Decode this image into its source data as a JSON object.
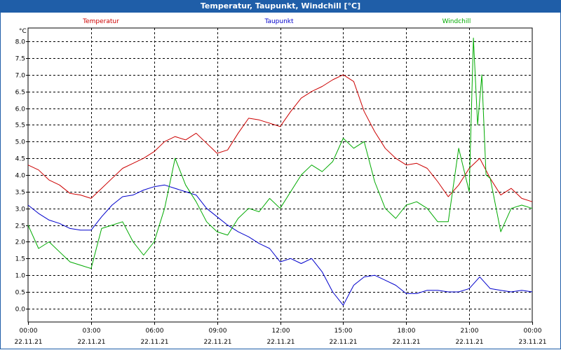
{
  "window": {
    "title": "Temperatur, Taupunkt, Windchill [°C]"
  },
  "chart_data": {
    "type": "line",
    "title": "Temperatur, Taupunkt, Windchill [°C]",
    "ylabel": "°C",
    "ylim": [
      -0.4,
      8.4
    ],
    "yticks": [
      0.0,
      0.5,
      1.0,
      1.5,
      2.0,
      2.5,
      3.0,
      3.5,
      4.0,
      4.5,
      5.0,
      5.5,
      6.0,
      6.5,
      7.0,
      7.5,
      8.0
    ],
    "ytick_labels": [
      "0.0",
      "0.5",
      "1.0",
      "1.5",
      "2.0",
      "2.5",
      "3.0",
      "3.5",
      "4.0",
      "4.5",
      "5.0",
      "5.5",
      "6.0",
      "6.5",
      "7.0",
      "7.5",
      "8.0"
    ],
    "xlim": [
      0,
      24
    ],
    "xticks": [
      0,
      3,
      6,
      9,
      12,
      15,
      18,
      21,
      24
    ],
    "xtick_times": [
      "00:00",
      "03:00",
      "06:00",
      "09:00",
      "12:00",
      "15:00",
      "18:00",
      "21:00",
      "00:00"
    ],
    "xtick_dates": [
      "22.11.21",
      "22.11.21",
      "22.11.21",
      "22.11.21",
      "22.11.21",
      "22.11.21",
      "22.11.21",
      "22.11.21",
      "23.11.21"
    ],
    "grid": true,
    "series": [
      {
        "name": "Temperatur",
        "color": "#cc0000",
        "x": [
          0,
          0.5,
          1,
          1.5,
          2,
          2.5,
          3,
          3.5,
          4,
          4.5,
          5,
          5.5,
          6,
          6.5,
          7,
          7.5,
          8,
          8.5,
          9,
          9.5,
          10,
          10.5,
          11,
          11.5,
          12,
          12.5,
          13,
          13.5,
          14,
          14.5,
          15,
          15.5,
          16,
          16.5,
          17,
          17.5,
          18,
          18.5,
          19,
          19.5,
          20,
          20.5,
          21,
          21.5,
          22,
          22.5,
          23,
          23.5,
          24
        ],
        "values": [
          4.3,
          4.15,
          3.85,
          3.7,
          3.45,
          3.4,
          3.3,
          3.6,
          3.9,
          4.2,
          4.35,
          4.5,
          4.7,
          5.0,
          5.15,
          5.05,
          5.25,
          4.95,
          4.65,
          4.75,
          5.25,
          5.7,
          5.65,
          5.55,
          5.45,
          5.9,
          6.3,
          6.5,
          6.65,
          6.85,
          7.0,
          6.8,
          5.9,
          5.3,
          4.8,
          4.5,
          4.3,
          4.35,
          4.2,
          3.8,
          3.35,
          3.7,
          4.2,
          4.5,
          3.9,
          3.4,
          3.6,
          3.3,
          3.2
        ]
      },
      {
        "name": "Taupunkt",
        "color": "#0000cc",
        "x": [
          0,
          0.5,
          1,
          1.5,
          2,
          2.5,
          3,
          3.5,
          4,
          4.5,
          5,
          5.5,
          6,
          6.5,
          7,
          7.5,
          8,
          8.5,
          9,
          9.5,
          10,
          10.5,
          11,
          11.5,
          12,
          12.5,
          13,
          13.5,
          14,
          14.5,
          15,
          15.5,
          16,
          16.5,
          17,
          17.5,
          18,
          18.5,
          19,
          19.5,
          20,
          20.5,
          21,
          21.5,
          22,
          22.5,
          23,
          23.5,
          24
        ],
        "values": [
          3.1,
          2.85,
          2.65,
          2.55,
          2.4,
          2.35,
          2.35,
          2.75,
          3.1,
          3.35,
          3.4,
          3.55,
          3.65,
          3.7,
          3.6,
          3.5,
          3.4,
          3.0,
          2.75,
          2.5,
          2.3,
          2.15,
          1.95,
          1.8,
          1.4,
          1.5,
          1.35,
          1.5,
          1.1,
          0.5,
          0.1,
          0.7,
          0.95,
          1.0,
          0.85,
          0.7,
          0.45,
          0.45,
          0.55,
          0.55,
          0.5,
          0.5,
          0.6,
          0.95,
          0.6,
          0.55,
          0.5,
          0.55,
          0.5
        ]
      },
      {
        "name": "Windchill",
        "color": "#00aa00",
        "x": [
          0,
          0.5,
          1,
          1.5,
          2,
          2.5,
          3,
          3.5,
          4,
          4.5,
          5,
          5.5,
          6,
          6.5,
          7,
          7.5,
          8,
          8.5,
          9,
          9.5,
          10,
          10.5,
          11,
          11.5,
          12,
          12.5,
          13,
          13.5,
          14,
          14.5,
          15,
          15.5,
          16,
          16.5,
          17,
          17.5,
          18,
          18.5,
          19,
          19.5,
          20,
          20.5,
          21,
          21.2,
          21.4,
          21.6,
          21.8,
          22,
          22.5,
          23,
          23.5,
          24
        ],
        "values": [
          2.5,
          1.8,
          2.0,
          1.7,
          1.4,
          1.3,
          1.2,
          2.4,
          2.5,
          2.6,
          2.0,
          1.6,
          2.0,
          3.0,
          4.5,
          3.7,
          3.2,
          2.6,
          2.3,
          2.2,
          2.7,
          3.0,
          2.9,
          3.3,
          3.0,
          3.5,
          4.0,
          4.3,
          4.1,
          4.4,
          5.1,
          4.8,
          5.0,
          3.8,
          3.0,
          2.7,
          3.1,
          3.2,
          3.0,
          2.6,
          2.6,
          4.8,
          3.5,
          8.1,
          5.5,
          7.0,
          4.0,
          3.9,
          2.3,
          3.0,
          3.1,
          3.0
        ]
      }
    ]
  }
}
